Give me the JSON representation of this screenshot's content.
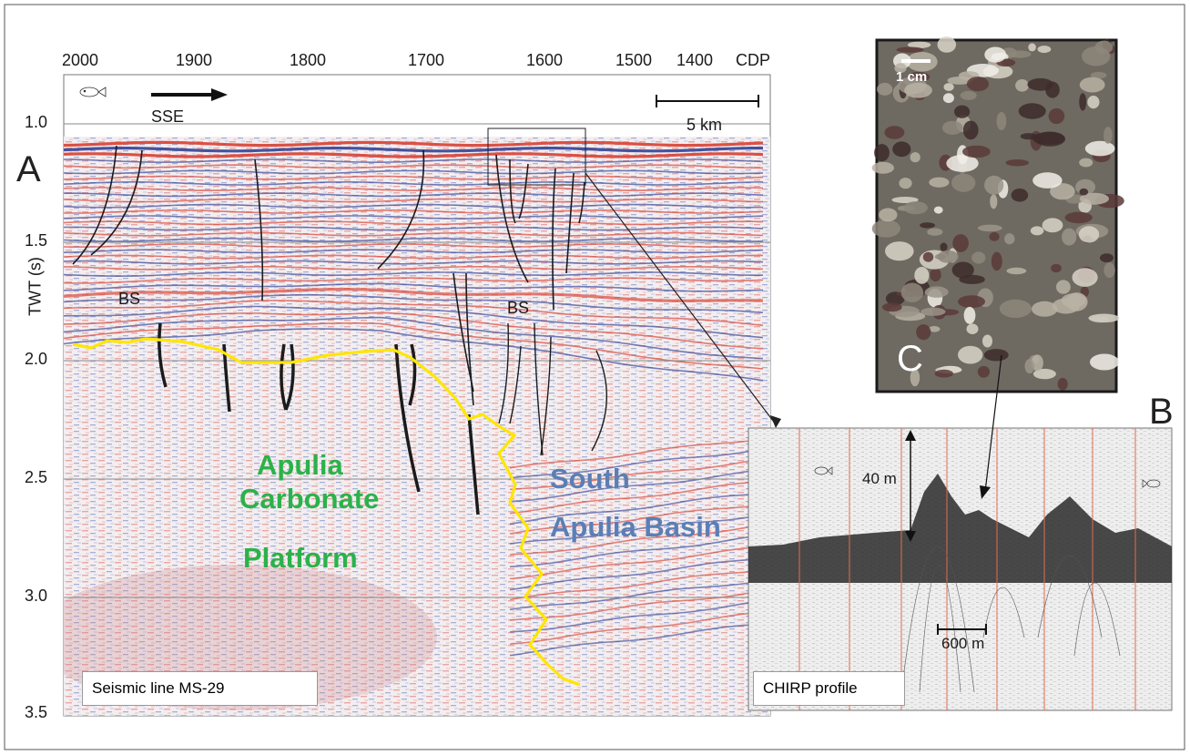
{
  "panels": {
    "a": {
      "letter": "A",
      "caption": "Seismic line MS-29"
    },
    "b": {
      "letter": "B",
      "caption": "CHIRP profile"
    },
    "c": {
      "letter": "C"
    }
  },
  "cdp_axis": {
    "ticks": [
      "2000",
      "1900",
      "1800",
      "1700",
      "1600",
      "1500",
      "1400"
    ],
    "unit": "CDP"
  },
  "twt_axis": {
    "label": "TWT (s)",
    "ticks": [
      "1.0",
      "1.5",
      "2.0",
      "2.5",
      "3.0",
      "3.5"
    ]
  },
  "direction": {
    "label": "SSE"
  },
  "scale_bars": {
    "seismic": "5 km",
    "chirp_horizontal": "600 m",
    "chirp_vertical": "40 m",
    "photo": "1 cm"
  },
  "horizon_labels": {
    "left": "BS",
    "right": "BS"
  },
  "domains": {
    "platform": [
      "Apulia",
      "Carbonate",
      "Platform"
    ],
    "basin": [
      "South",
      "Apulia Basin"
    ]
  },
  "colors": {
    "platform_text": "#2bb24a",
    "basin_text": "#5a7fb6",
    "boundary_line": "#ffe600",
    "reflector_red": "#d9483b",
    "reflector_blue": "#3b4a9a"
  }
}
